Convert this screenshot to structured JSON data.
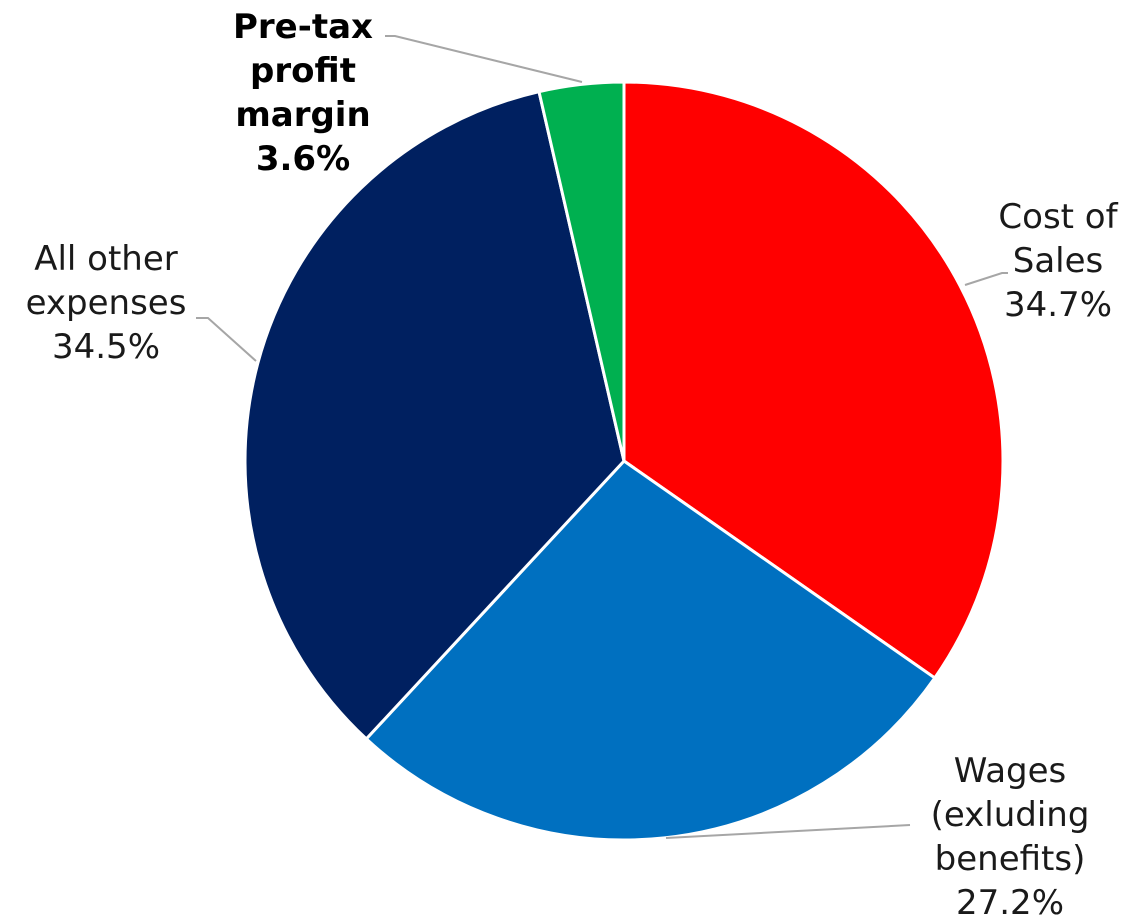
{
  "chart_data": {
    "type": "pie",
    "title": "",
    "slices": [
      {
        "label_lines": [
          "Cost of",
          "Sales"
        ],
        "value": 34.7,
        "value_label": "34.7%",
        "color": "#ff0000",
        "bold": false
      },
      {
        "label_lines": [
          "Wages",
          "(exluding",
          "benefits)"
        ],
        "value": 27.2,
        "value_label": "27.2%",
        "color": "#0070c0",
        "bold": false
      },
      {
        "label_lines": [
          "All other",
          "expenses"
        ],
        "value": 34.5,
        "value_label": "34.5%",
        "color": "#002060",
        "bold": false
      },
      {
        "label_lines": [
          "Pre-tax",
          "profit",
          "margin"
        ],
        "value": 3.6,
        "value_label": "3.6%",
        "color": "#00b050",
        "bold": true
      }
    ],
    "start_angle": "12 o'clock",
    "direction": "clockwise",
    "legend": "none",
    "slice_border_color": "#ffffff",
    "leader_line_color": "#a6a6a6"
  }
}
